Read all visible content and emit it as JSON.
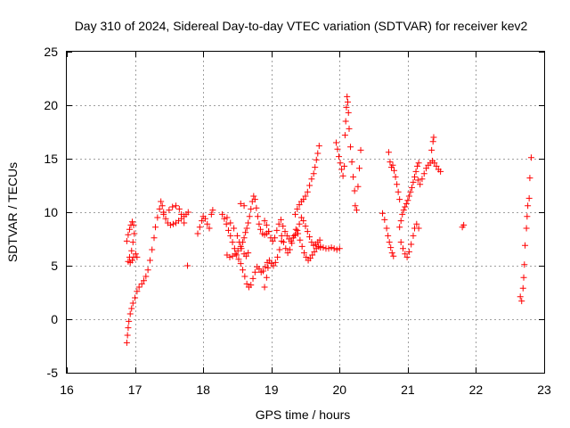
{
  "chart_data": {
    "type": "scatter",
    "title": "Day 310 of 2024, Sidereal Day-to-day VTEC variation (SDTVAR) for receiver kev2",
    "xlabel": "GPS time / hours",
    "ylabel": "SDTVAR / TECUs",
    "xlim": [
      16,
      23
    ],
    "ylim": [
      -5,
      25
    ],
    "xticks": [
      "16",
      "17",
      "18",
      "19",
      "20",
      "21",
      "22",
      "23"
    ],
    "yticks": [
      "-5",
      "0",
      "5",
      "10",
      "15",
      "20",
      "25"
    ],
    "grid": true,
    "marker": "+",
    "color": "#ff0000",
    "series": [
      {
        "name": "s1",
        "points": [
          [
            16.88,
            -2.2
          ],
          [
            16.89,
            -1.5
          ],
          [
            16.9,
            -0.8
          ],
          [
            16.91,
            -0.2
          ],
          [
            16.93,
            0.5
          ],
          [
            16.95,
            1.0
          ],
          [
            16.97,
            1.5
          ],
          [
            17.0,
            2.0
          ],
          [
            17.03,
            2.6
          ],
          [
            17.06,
            3.0
          ],
          [
            17.1,
            3.3
          ],
          [
            17.13,
            3.6
          ],
          [
            17.16,
            4.0
          ],
          [
            17.19,
            4.6
          ],
          [
            17.22,
            5.5
          ],
          [
            17.25,
            6.5
          ],
          [
            17.28,
            7.6
          ],
          [
            17.3,
            8.6
          ],
          [
            17.33,
            9.5
          ],
          [
            17.36,
            10.3
          ],
          [
            17.38,
            11.0
          ],
          [
            17.4,
            10.6
          ],
          [
            17.42,
            10.0
          ]
        ]
      },
      {
        "name": "s2",
        "points": [
          [
            16.88,
            7.3
          ],
          [
            16.9,
            7.9
          ],
          [
            16.92,
            8.4
          ],
          [
            16.94,
            8.8
          ],
          [
            16.96,
            9.1
          ],
          [
            16.98,
            8.8
          ],
          [
            16.99,
            8.0
          ],
          [
            16.97,
            7.2
          ],
          [
            16.95,
            6.4
          ],
          [
            16.92,
            5.8
          ],
          [
            16.9,
            5.4
          ],
          [
            16.93,
            5.3
          ],
          [
            16.96,
            5.5
          ],
          [
            16.98,
            5.8
          ],
          [
            17.01,
            6.1
          ],
          [
            17.03,
            5.8
          ]
        ]
      },
      {
        "name": "s3",
        "points": [
          [
            17.42,
            9.8
          ],
          [
            17.45,
            9.4
          ],
          [
            17.48,
            9.0
          ],
          [
            17.52,
            8.8
          ],
          [
            17.56,
            8.9
          ],
          [
            17.6,
            9.0
          ],
          [
            17.64,
            9.2
          ],
          [
            17.68,
            9.4
          ],
          [
            17.72,
            9.6
          ],
          [
            17.75,
            9.8
          ],
          [
            17.78,
            10.0
          ],
          [
            17.72,
            9.0
          ],
          [
            17.5,
            10.2
          ],
          [
            17.55,
            10.5
          ],
          [
            17.6,
            10.6
          ],
          [
            17.65,
            10.3
          ],
          [
            17.68,
            9.8
          ],
          [
            17.77,
            5.0
          ]
        ]
      },
      {
        "name": "s4",
        "points": [
          [
            17.92,
            8.0
          ],
          [
            17.95,
            8.6
          ],
          [
            17.98,
            9.2
          ],
          [
            18.0,
            9.6
          ],
          [
            18.03,
            9.4
          ],
          [
            18.06,
            8.9
          ],
          [
            18.09,
            8.5
          ],
          [
            18.12,
            9.8
          ],
          [
            18.14,
            10.2
          ]
        ]
      },
      {
        "name": "s5",
        "points": [
          [
            18.28,
            9.8
          ],
          [
            18.31,
            9.4
          ],
          [
            18.34,
            8.9
          ],
          [
            18.37,
            8.3
          ],
          [
            18.4,
            7.8
          ],
          [
            18.43,
            7.2
          ],
          [
            18.46,
            6.6
          ],
          [
            18.49,
            6.0
          ],
          [
            18.52,
            5.6
          ],
          [
            18.55,
            5.2
          ],
          [
            18.58,
            4.6
          ],
          [
            18.61,
            4.0
          ],
          [
            18.64,
            3.3
          ],
          [
            18.67,
            3.0
          ],
          [
            18.7,
            3.2
          ],
          [
            18.73,
            3.8
          ],
          [
            18.76,
            4.4
          ],
          [
            18.79,
            4.9
          ],
          [
            18.82,
            4.7
          ],
          [
            18.85,
            4.4
          ],
          [
            18.88,
            4.5
          ],
          [
            18.91,
            4.9
          ],
          [
            18.94,
            5.3
          ],
          [
            18.97,
            5.5
          ],
          [
            19.0,
            5.2
          ],
          [
            19.03,
            5.0
          ],
          [
            19.06,
            5.3
          ],
          [
            19.09,
            5.8
          ],
          [
            19.12,
            6.5
          ],
          [
            19.15,
            7.3
          ]
        ]
      },
      {
        "name": "s6",
        "points": [
          [
            18.35,
            6.0
          ],
          [
            18.39,
            5.8
          ],
          [
            18.43,
            5.9
          ],
          [
            18.47,
            6.1
          ],
          [
            18.51,
            6.4
          ],
          [
            18.55,
            6.8
          ],
          [
            18.58,
            7.2
          ],
          [
            18.6,
            7.6
          ],
          [
            18.62,
            8.1
          ],
          [
            18.64,
            8.5
          ],
          [
            18.66,
            9.0
          ],
          [
            18.68,
            9.6
          ],
          [
            18.7,
            10.3
          ],
          [
            18.72,
            11.0
          ],
          [
            18.74,
            11.5
          ],
          [
            18.76,
            11.2
          ],
          [
            18.78,
            10.4
          ],
          [
            18.8,
            9.6
          ],
          [
            18.82,
            8.9
          ],
          [
            18.84,
            8.4
          ],
          [
            18.87,
            8.0
          ],
          [
            18.9,
            7.9
          ],
          [
            18.93,
            8.0
          ],
          [
            18.96,
            8.2
          ]
        ]
      },
      {
        "name": "s7",
        "points": [
          [
            18.55,
            10.8
          ],
          [
            18.6,
            10.6
          ],
          [
            18.35,
            9.5
          ],
          [
            18.4,
            9.0
          ],
          [
            18.45,
            8.5
          ],
          [
            18.5,
            7.8
          ],
          [
            18.53,
            7.2
          ],
          [
            18.56,
            6.6
          ],
          [
            18.6,
            6.1
          ],
          [
            18.63,
            5.9
          ],
          [
            18.66,
            6.2
          ],
          [
            18.9,
            3.0
          ],
          [
            18.93,
            3.9
          ],
          [
            18.95,
            4.8
          ]
        ]
      },
      {
        "name": "s8",
        "points": [
          [
            18.9,
            9.2
          ],
          [
            18.93,
            8.8
          ],
          [
            18.96,
            8.2
          ],
          [
            18.99,
            7.6
          ],
          [
            19.02,
            7.3
          ],
          [
            19.05,
            7.6
          ],
          [
            19.08,
            8.3
          ],
          [
            19.11,
            8.9
          ],
          [
            19.14,
            9.3
          ],
          [
            19.17,
            8.7
          ],
          [
            19.2,
            8.2
          ],
          [
            19.23,
            7.8
          ],
          [
            19.26,
            7.5
          ],
          [
            19.29,
            7.3
          ],
          [
            19.32,
            7.6
          ],
          [
            19.35,
            7.9
          ],
          [
            19.38,
            8.3
          ],
          [
            19.41,
            8.9
          ],
          [
            19.44,
            9.5
          ],
          [
            19.47,
            9.2
          ],
          [
            19.5,
            8.7
          ],
          [
            19.53,
            8.2
          ],
          [
            19.56,
            7.7
          ],
          [
            19.59,
            7.2
          ],
          [
            19.62,
            6.9
          ],
          [
            19.65,
            7.0
          ],
          [
            19.68,
            7.2
          ],
          [
            19.71,
            7.4
          ]
        ]
      },
      {
        "name": "s9",
        "points": [
          [
            19.15,
            7.8
          ],
          [
            19.18,
            7.2
          ],
          [
            19.21,
            6.6
          ],
          [
            19.24,
            6.2
          ],
          [
            19.27,
            6.5
          ],
          [
            19.3,
            7.1
          ],
          [
            19.33,
            7.8
          ],
          [
            19.36,
            8.4
          ],
          [
            19.39,
            8.0
          ],
          [
            19.42,
            7.4
          ],
          [
            19.45,
            6.8
          ],
          [
            19.48,
            6.2
          ],
          [
            19.51,
            5.8
          ],
          [
            19.54,
            5.5
          ],
          [
            19.57,
            5.7
          ],
          [
            19.6,
            6.0
          ],
          [
            19.63,
            6.3
          ],
          [
            19.66,
            6.6
          ],
          [
            19.69,
            6.8
          ],
          [
            19.72,
            6.7
          ]
        ]
      },
      {
        "name": "s10",
        "points": [
          [
            19.35,
            9.8
          ],
          [
            19.38,
            10.3
          ],
          [
            19.41,
            10.7
          ],
          [
            19.44,
            11.0
          ],
          [
            19.47,
            11.2
          ],
          [
            19.5,
            11.5
          ],
          [
            19.53,
            11.9
          ],
          [
            19.56,
            12.5
          ],
          [
            19.59,
            13.1
          ],
          [
            19.62,
            13.6
          ],
          [
            19.64,
            14.2
          ],
          [
            19.66,
            14.9
          ],
          [
            19.68,
            15.5
          ],
          [
            19.7,
            16.2
          ]
        ]
      },
      {
        "name": "s11",
        "points": [
          [
            19.72,
            6.8
          ],
          [
            19.76,
            6.7
          ],
          [
            19.8,
            6.6
          ],
          [
            19.84,
            6.6
          ],
          [
            19.88,
            6.7
          ],
          [
            19.92,
            6.6
          ],
          [
            19.96,
            6.5
          ],
          [
            20.0,
            6.6
          ]
        ]
      },
      {
        "name": "s12",
        "points": [
          [
            19.95,
            16.5
          ],
          [
            19.97,
            15.9
          ],
          [
            19.99,
            15.2
          ],
          [
            20.01,
            14.6
          ],
          [
            20.03,
            14.0
          ],
          [
            20.05,
            13.4
          ],
          [
            20.07,
            14.3
          ],
          [
            20.08,
            17.2
          ],
          [
            20.09,
            18.5
          ],
          [
            20.1,
            19.8
          ],
          [
            20.11,
            20.8
          ],
          [
            20.12,
            20.3
          ],
          [
            20.13,
            19.3
          ],
          [
            20.14,
            17.8
          ],
          [
            20.16,
            16.1
          ],
          [
            20.18,
            14.7
          ],
          [
            20.2,
            13.3
          ],
          [
            20.22,
            12.0
          ],
          [
            20.23,
            10.6
          ],
          [
            20.25,
            10.2
          ],
          [
            20.27,
            12.4
          ],
          [
            20.29,
            14.1
          ],
          [
            20.31,
            15.8
          ]
        ]
      },
      {
        "name": "s13",
        "points": [
          [
            20.63,
            9.9
          ],
          [
            20.66,
            9.3
          ],
          [
            20.69,
            8.5
          ],
          [
            20.71,
            7.8
          ],
          [
            20.73,
            7.2
          ],
          [
            20.75,
            6.7
          ],
          [
            20.77,
            6.2
          ],
          [
            20.79,
            5.9
          ],
          [
            20.72,
            15.6
          ],
          [
            20.74,
            14.7
          ],
          [
            20.76,
            14.2
          ],
          [
            20.78,
            14.4
          ],
          [
            20.8,
            13.9
          ],
          [
            20.82,
            13.3
          ],
          [
            20.84,
            12.6
          ],
          [
            20.86,
            11.9
          ],
          [
            20.88,
            11.2
          ]
        ]
      },
      {
        "name": "s14",
        "points": [
          [
            20.88,
            8.6
          ],
          [
            20.9,
            9.2
          ],
          [
            20.92,
            9.8
          ],
          [
            20.94,
            10.2
          ],
          [
            20.96,
            10.5
          ],
          [
            20.98,
            10.8
          ],
          [
            21.0,
            11.1
          ],
          [
            21.02,
            11.5
          ],
          [
            21.04,
            11.9
          ],
          [
            21.06,
            12.3
          ],
          [
            21.08,
            12.8
          ],
          [
            21.1,
            13.3
          ],
          [
            21.12,
            13.8
          ],
          [
            21.14,
            14.3
          ],
          [
            21.16,
            14.6
          ]
        ]
      },
      {
        "name": "s15",
        "points": [
          [
            20.9,
            7.2
          ],
          [
            20.93,
            6.6
          ],
          [
            20.96,
            6.1
          ],
          [
            20.99,
            5.8
          ],
          [
            21.02,
            6.3
          ],
          [
            21.05,
            7.0
          ],
          [
            21.08,
            7.8
          ],
          [
            21.1,
            8.5
          ],
          [
            21.13,
            8.9
          ],
          [
            21.16,
            8.5
          ]
        ]
      },
      {
        "name": "s16",
        "points": [
          [
            21.15,
            13.0
          ],
          [
            21.18,
            12.6
          ],
          [
            21.21,
            13.1
          ],
          [
            21.24,
            13.6
          ],
          [
            21.27,
            14.1
          ],
          [
            21.3,
            14.4
          ],
          [
            21.33,
            14.6
          ],
          [
            21.36,
            14.8
          ],
          [
            21.39,
            14.6
          ],
          [
            21.42,
            14.3
          ],
          [
            21.45,
            14.0
          ],
          [
            21.48,
            13.8
          ],
          [
            21.35,
            15.8
          ],
          [
            21.37,
            16.6
          ],
          [
            21.38,
            17.0
          ]
        ]
      },
      {
        "name": "s17",
        "points": [
          [
            21.8,
            8.6
          ],
          [
            21.82,
            8.8
          ]
        ]
      },
      {
        "name": "s18",
        "points": [
          [
            22.65,
            2.1
          ],
          [
            22.67,
            1.7
          ],
          [
            22.69,
            2.9
          ],
          [
            22.7,
            3.9
          ],
          [
            22.71,
            5.1
          ],
          [
            22.72,
            6.9
          ],
          [
            22.74,
            8.5
          ],
          [
            22.75,
            9.6
          ],
          [
            22.76,
            10.6
          ],
          [
            22.78,
            11.3
          ],
          [
            22.79,
            13.2
          ],
          [
            22.81,
            15.1
          ]
        ]
      }
    ]
  }
}
